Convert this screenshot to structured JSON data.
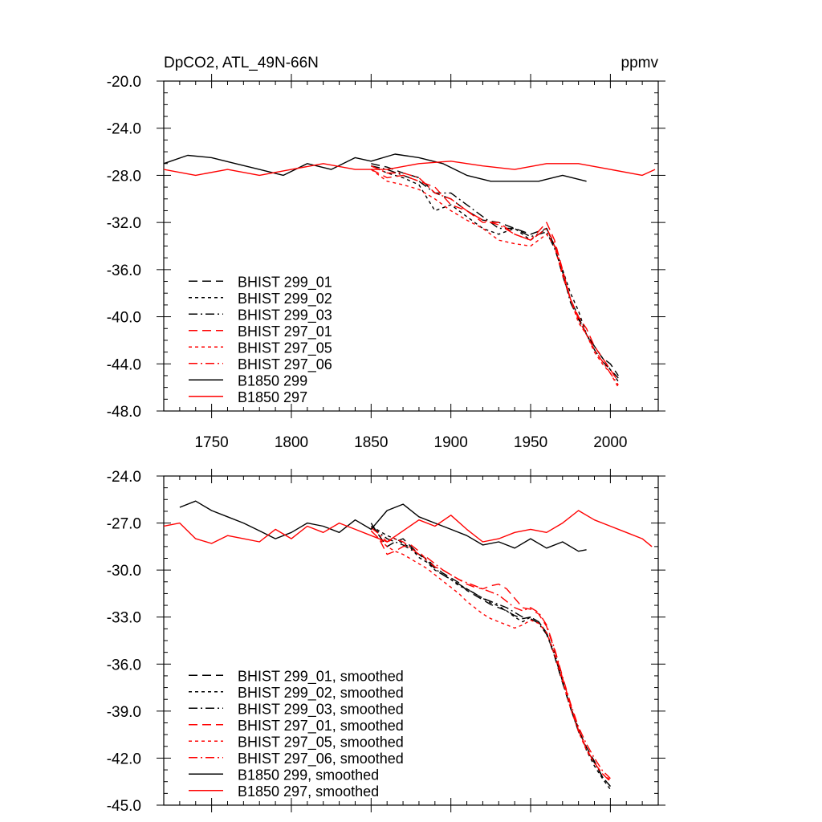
{
  "header": {
    "title": "DpCO2, ATL_49N-66N",
    "units": "ppmv"
  },
  "colors": {
    "black": "#000000",
    "red": "#ff0000"
  },
  "chart_data": [
    {
      "type": "line",
      "title": "DpCO2, ATL_49N-66N",
      "units": "ppmv",
      "xlim": [
        1720,
        2030
      ],
      "ylim": [
        -48,
        -20
      ],
      "x_ticks": [
        1750,
        1800,
        1850,
        1900,
        1950,
        2000
      ],
      "x_tick_labels": [
        "1750",
        "1800",
        "1850",
        "1900",
        "1950",
        "2000"
      ],
      "y_ticks": [
        -48,
        -44,
        -40,
        -36,
        -32,
        -28,
        -24,
        -20
      ],
      "y_tick_labels": [
        "-48.0",
        "-44.0",
        "-40.0",
        "-36.0",
        "-32.0",
        "-28.0",
        "-24.0",
        "-20.0"
      ],
      "legend_position": "bottom-left",
      "series": [
        {
          "name": "BHIST 299_01",
          "color": "#000000",
          "dash": "long-dash",
          "x": [
            1850,
            1860,
            1870,
            1880,
            1890,
            1900,
            1910,
            1920,
            1930,
            1940,
            1950,
            1960,
            1965,
            1970,
            1975,
            1980,
            1985,
            1990,
            1995,
            2000,
            2005
          ],
          "y": [
            -27.0,
            -27.3,
            -27.8,
            -28.2,
            -29.5,
            -30.0,
            -31.0,
            -31.8,
            -32.0,
            -32.5,
            -33.0,
            -32.5,
            -34.0,
            -36.5,
            -38.5,
            -40.0,
            -41.5,
            -42.5,
            -43.5,
            -44.0,
            -45.0
          ]
        },
        {
          "name": "BHIST 299_02",
          "color": "#000000",
          "dash": "short-dash",
          "x": [
            1850,
            1860,
            1870,
            1880,
            1890,
            1900,
            1910,
            1920,
            1930,
            1940,
            1950,
            1960,
            1965,
            1970,
            1975,
            1980,
            1985,
            1990,
            1995,
            2000,
            2005
          ],
          "y": [
            -27.2,
            -27.8,
            -28.2,
            -28.8,
            -31.0,
            -30.5,
            -31.5,
            -32.5,
            -33.0,
            -32.5,
            -33.5,
            -32.5,
            -34.0,
            -36.0,
            -38.0,
            -39.5,
            -41.5,
            -42.5,
            -43.5,
            -44.5,
            -45.5
          ]
        },
        {
          "name": "BHIST 299_03",
          "color": "#000000",
          "dash": "dash-dot",
          "x": [
            1850,
            1860,
            1870,
            1880,
            1890,
            1900,
            1910,
            1920,
            1930,
            1940,
            1950,
            1960,
            1965,
            1970,
            1975,
            1980,
            1985,
            1990,
            1995,
            2000,
            2005
          ],
          "y": [
            -27.2,
            -27.5,
            -28.0,
            -28.5,
            -29.5,
            -29.5,
            -30.5,
            -31.5,
            -32.5,
            -32.5,
            -33.2,
            -32.8,
            -34.2,
            -36.2,
            -38.8,
            -40.2,
            -41.5,
            -42.8,
            -43.8,
            -44.5,
            -45.2
          ]
        },
        {
          "name": "BHIST 297_01",
          "color": "#ff0000",
          "dash": "long-dash",
          "x": [
            1850,
            1860,
            1870,
            1880,
            1890,
            1900,
            1910,
            1920,
            1930,
            1940,
            1950,
            1960,
            1965,
            1970,
            1975,
            1980,
            1985,
            1990,
            1995,
            2000,
            2005
          ],
          "y": [
            -27.5,
            -28.2,
            -28.0,
            -28.5,
            -29.0,
            -30.5,
            -31.0,
            -32.0,
            -32.0,
            -33.0,
            -33.5,
            -32.0,
            -33.5,
            -36.0,
            -38.5,
            -40.0,
            -41.0,
            -42.5,
            -43.5,
            -44.5,
            -45.5
          ]
        },
        {
          "name": "BHIST 297_05",
          "color": "#ff0000",
          "dash": "short-dash",
          "x": [
            1850,
            1860,
            1870,
            1880,
            1890,
            1900,
            1910,
            1920,
            1930,
            1940,
            1950,
            1960,
            1965,
            1970,
            1975,
            1980,
            1985,
            1990,
            1995,
            2000,
            2005
          ],
          "y": [
            -27.5,
            -28.5,
            -28.8,
            -29.2,
            -30.0,
            -31.0,
            -31.8,
            -32.5,
            -33.5,
            -33.8,
            -34.0,
            -33.0,
            -34.0,
            -36.5,
            -38.5,
            -40.5,
            -41.5,
            -43.0,
            -44.0,
            -44.8,
            -46.0
          ]
        },
        {
          "name": "BHIST 297_06",
          "color": "#ff0000",
          "dash": "dash-dot",
          "x": [
            1850,
            1860,
            1870,
            1880,
            1890,
            1900,
            1910,
            1920,
            1930,
            1940,
            1950,
            1960,
            1965,
            1970,
            1975,
            1980,
            1985,
            1990,
            1995,
            2000,
            2005
          ],
          "y": [
            -27.2,
            -27.8,
            -27.8,
            -28.2,
            -29.5,
            -30.0,
            -31.0,
            -31.8,
            -32.2,
            -33.0,
            -33.5,
            -32.5,
            -33.8,
            -36.2,
            -38.5,
            -40.2,
            -41.5,
            -42.8,
            -43.8,
            -44.8,
            -45.8
          ]
        },
        {
          "name": "B1850 299",
          "color": "#000000",
          "dash": "solid",
          "x": [
            1720,
            1735,
            1750,
            1765,
            1780,
            1795,
            1810,
            1825,
            1840,
            1850,
            1865,
            1880,
            1895,
            1910,
            1925,
            1940,
            1955,
            1970,
            1985
          ],
          "y": [
            -27.0,
            -26.3,
            -26.5,
            -27.0,
            -27.5,
            -28.0,
            -27.0,
            -27.5,
            -26.5,
            -26.8,
            -26.2,
            -26.5,
            -27.0,
            -28.0,
            -28.5,
            -28.5,
            -28.5,
            -28.0,
            -28.5
          ]
        },
        {
          "name": "B1850 297",
          "color": "#ff0000",
          "dash": "solid",
          "x": [
            1720,
            1740,
            1760,
            1780,
            1800,
            1820,
            1840,
            1860,
            1880,
            1900,
            1920,
            1940,
            1960,
            1980,
            2000,
            2020,
            2028
          ],
          "y": [
            -27.5,
            -28.0,
            -27.5,
            -28.0,
            -27.5,
            -27.0,
            -27.5,
            -27.5,
            -27.0,
            -26.8,
            -27.2,
            -27.5,
            -27.0,
            -27.0,
            -27.5,
            -28.0,
            -27.5
          ]
        }
      ]
    },
    {
      "type": "line",
      "xlim": [
        1720,
        2030
      ],
      "ylim": [
        -45,
        -24
      ],
      "x_ticks": [
        1750,
        1800,
        1850,
        1900,
        1950,
        2000
      ],
      "y_ticks": [
        -45,
        -42,
        -39,
        -36,
        -33,
        -30,
        -27,
        -24
      ],
      "y_tick_labels": [
        "-45.0",
        "-42.0",
        "-39.0",
        "-36.0",
        "-33.0",
        "-30.0",
        "-27.0",
        "-24.0"
      ],
      "legend_position": "bottom-left",
      "series": [
        {
          "name": "BHIST 299_01, smoothed",
          "color": "#000000",
          "dash": "long-dash",
          "x": [
            1850,
            1855,
            1860,
            1865,
            1870,
            1875,
            1880,
            1885,
            1890,
            1895,
            1900,
            1905,
            1910,
            1915,
            1920,
            1925,
            1930,
            1935,
            1940,
            1945,
            1950,
            1955,
            1960,
            1965,
            1970,
            1975,
            1980,
            1985,
            1990,
            1995,
            2000
          ],
          "y": [
            -27.0,
            -27.8,
            -28.5,
            -28.2,
            -28.0,
            -28.5,
            -29.0,
            -29.3,
            -29.8,
            -30.2,
            -30.5,
            -30.8,
            -31.3,
            -31.6,
            -31.9,
            -32.2,
            -32.4,
            -32.6,
            -32.9,
            -33.1,
            -33.0,
            -33.3,
            -34.0,
            -35.5,
            -37.2,
            -38.8,
            -40.2,
            -41.3,
            -42.2,
            -43.2,
            -43.8
          ]
        },
        {
          "name": "BHIST 299_02, smoothed",
          "color": "#000000",
          "dash": "short-dash",
          "x": [
            1850,
            1855,
            1860,
            1865,
            1870,
            1875,
            1880,
            1885,
            1890,
            1895,
            1900,
            1905,
            1910,
            1915,
            1920,
            1925,
            1930,
            1935,
            1940,
            1945,
            1950,
            1955,
            1960,
            1965,
            1970,
            1975,
            1980,
            1985,
            1990,
            1995,
            2000
          ],
          "y": [
            -27.2,
            -27.5,
            -27.8,
            -28.0,
            -28.3,
            -28.6,
            -29.2,
            -29.5,
            -30.0,
            -30.3,
            -30.6,
            -31.0,
            -31.2,
            -31.5,
            -31.8,
            -32.1,
            -32.3,
            -32.6,
            -33.0,
            -33.3,
            -33.0,
            -33.3,
            -34.0,
            -35.3,
            -37.0,
            -38.7,
            -40.1,
            -41.5,
            -42.5,
            -43.3,
            -44.0
          ]
        },
        {
          "name": "BHIST 299_03, smoothed",
          "color": "#000000",
          "dash": "dash-dot",
          "x": [
            1850,
            1855,
            1860,
            1865,
            1870,
            1875,
            1880,
            1885,
            1890,
            1895,
            1900,
            1905,
            1910,
            1915,
            1920,
            1925,
            1930,
            1935,
            1940,
            1945,
            1950,
            1955,
            1960,
            1965,
            1970,
            1975,
            1980,
            1985,
            1990,
            1995,
            2000
          ],
          "y": [
            -27.3,
            -27.6,
            -28.0,
            -28.2,
            -28.4,
            -28.7,
            -29.0,
            -29.4,
            -29.9,
            -30.3,
            -30.6,
            -30.9,
            -31.2,
            -31.5,
            -31.8,
            -32.0,
            -32.2,
            -32.4,
            -32.7,
            -33.0,
            -33.1,
            -33.4,
            -34.1,
            -35.4,
            -37.1,
            -38.8,
            -40.3,
            -41.4,
            -42.3,
            -43.2,
            -43.8
          ]
        },
        {
          "name": "BHIST 297_01, smoothed",
          "color": "#ff0000",
          "dash": "long-dash",
          "x": [
            1850,
            1855,
            1860,
            1865,
            1870,
            1875,
            1880,
            1885,
            1890,
            1895,
            1900,
            1905,
            1910,
            1915,
            1920,
            1925,
            1930,
            1935,
            1940,
            1945,
            1950,
            1955,
            1960,
            1965,
            1970,
            1975,
            1980,
            1985,
            1990,
            1995,
            2000
          ],
          "y": [
            -27.5,
            -28.0,
            -29.0,
            -28.8,
            -28.5,
            -28.4,
            -28.8,
            -29.4,
            -29.8,
            -30.0,
            -30.3,
            -30.6,
            -30.9,
            -31.1,
            -31.2,
            -31.0,
            -30.9,
            -31.2,
            -31.8,
            -32.4,
            -32.5,
            -32.8,
            -33.6,
            -35.1,
            -36.9,
            -38.6,
            -40.2,
            -41.4,
            -42.3,
            -43.0,
            -43.5
          ]
        },
        {
          "name": "BHIST 297_05, smoothed",
          "color": "#ff0000",
          "dash": "short-dash",
          "x": [
            1850,
            1855,
            1860,
            1865,
            1870,
            1875,
            1880,
            1885,
            1890,
            1895,
            1900,
            1905,
            1910,
            1915,
            1920,
            1925,
            1930,
            1935,
            1940,
            1945,
            1950,
            1955,
            1960,
            1965,
            1970,
            1975,
            1980,
            1985,
            1990,
            1995,
            2000
          ],
          "y": [
            -27.5,
            -28.0,
            -28.5,
            -28.8,
            -29.0,
            -29.3,
            -29.6,
            -29.9,
            -30.3,
            -30.7,
            -31.1,
            -31.5,
            -32.0,
            -32.4,
            -32.8,
            -33.1,
            -33.3,
            -33.5,
            -33.7,
            -33.5,
            -33.2,
            -33.4,
            -34.0,
            -35.4,
            -37.1,
            -38.8,
            -40.3,
            -41.5,
            -42.3,
            -43.0,
            -43.4
          ]
        },
        {
          "name": "BHIST 297_06, smoothed",
          "color": "#ff0000",
          "dash": "dash-dot",
          "x": [
            1850,
            1855,
            1860,
            1865,
            1870,
            1875,
            1880,
            1885,
            1890,
            1895,
            1900,
            1905,
            1910,
            1915,
            1920,
            1925,
            1930,
            1935,
            1940,
            1945,
            1950,
            1955,
            1960,
            1965,
            1970,
            1975,
            1980,
            1985,
            1990,
            1995,
            2000
          ],
          "y": [
            -27.3,
            -27.7,
            -28.2,
            -28.0,
            -28.2,
            -28.6,
            -29.0,
            -29.2,
            -29.6,
            -30.0,
            -30.3,
            -30.6,
            -30.8,
            -31.0,
            -31.2,
            -31.4,
            -31.6,
            -32.0,
            -32.4,
            -32.6,
            -32.4,
            -32.7,
            -33.5,
            -35.0,
            -36.8,
            -38.5,
            -40.0,
            -41.1,
            -42.0,
            -42.8,
            -43.3
          ]
        },
        {
          "name": "B1850 299, smoothed",
          "color": "#000000",
          "dash": "solid",
          "x": [
            1730,
            1740,
            1750,
            1760,
            1770,
            1780,
            1790,
            1800,
            1810,
            1820,
            1830,
            1840,
            1850,
            1860,
            1870,
            1880,
            1890,
            1900,
            1910,
            1920,
            1930,
            1940,
            1950,
            1960,
            1970,
            1980,
            1985
          ],
          "y": [
            -26.0,
            -25.6,
            -26.2,
            -26.6,
            -27.0,
            -27.5,
            -28.0,
            -27.6,
            -27.0,
            -27.2,
            -27.6,
            -26.8,
            -27.4,
            -26.2,
            -25.8,
            -26.6,
            -27.0,
            -27.4,
            -27.8,
            -28.4,
            -28.2,
            -28.6,
            -28.0,
            -28.6,
            -28.2,
            -28.8,
            -28.7
          ]
        },
        {
          "name": "B1850 297, smoothed",
          "color": "#ff0000",
          "dash": "solid",
          "x": [
            1720,
            1730,
            1740,
            1750,
            1760,
            1770,
            1780,
            1790,
            1800,
            1810,
            1820,
            1830,
            1840,
            1850,
            1860,
            1870,
            1880,
            1890,
            1900,
            1910,
            1920,
            1930,
            1940,
            1950,
            1960,
            1970,
            1980,
            1990,
            2000,
            2010,
            2020,
            2026
          ],
          "y": [
            -27.2,
            -27.0,
            -28.0,
            -28.3,
            -27.8,
            -28.0,
            -28.2,
            -27.4,
            -28.0,
            -27.2,
            -27.6,
            -27.0,
            -27.4,
            -27.8,
            -28.2,
            -27.5,
            -26.8,
            -27.2,
            -26.5,
            -27.4,
            -28.2,
            -28.0,
            -27.6,
            -27.4,
            -27.6,
            -27.0,
            -26.2,
            -26.8,
            -27.2,
            -27.6,
            -28.0,
            -28.5
          ]
        }
      ]
    }
  ]
}
